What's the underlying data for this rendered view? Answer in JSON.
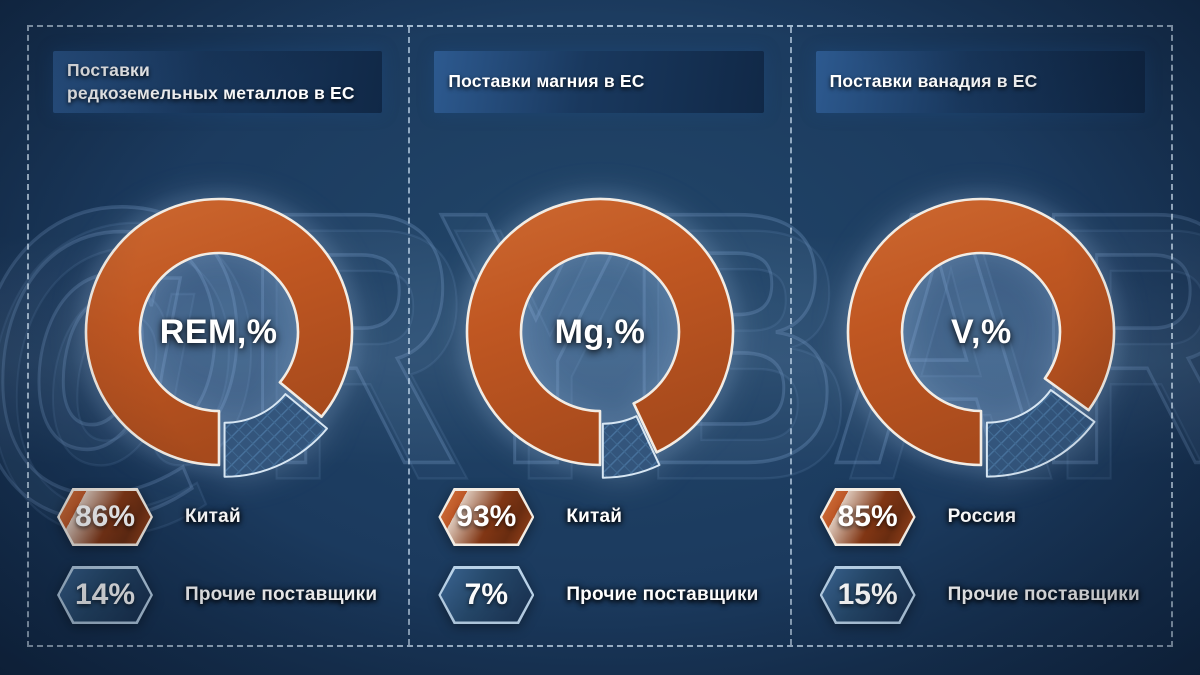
{
  "watermark": "@RYBAR",
  "colors": {
    "background": "#1b3a5e",
    "slice_main_orange": "#c05a24",
    "slice_other_blue": "#33557c",
    "dashed_border": "#d0e4f6",
    "badge_border_orange": "#f3ece3",
    "badge_border_blue": "#b9d2e8",
    "text": "#ffffff"
  },
  "panels": [
    {
      "title_lines": [
        "Поставки",
        "редкоземельных металлов в ЕС"
      ],
      "center_label": "REM,%",
      "slices": [
        {
          "pct_label": "86%",
          "label": "Китай"
        },
        {
          "pct_label": "14%",
          "label": "Прочие поставщики"
        }
      ]
    },
    {
      "title_lines": [
        "Поставки магния в ЕС"
      ],
      "center_label": "Mg,%",
      "slices": [
        {
          "pct_label": "93%",
          "label": "Китай"
        },
        {
          "pct_label": "7%",
          "label": "Прочие поставщики"
        }
      ]
    },
    {
      "title_lines": [
        "Поставки ванадия в ЕС"
      ],
      "center_label": "V,%",
      "slices": [
        {
          "pct_label": "85%",
          "label": "Россия"
        },
        {
          "pct_label": "15%",
          "label": "Прочие поставщики"
        }
      ]
    }
  ],
  "chart_data": [
    {
      "type": "pie",
      "title": "Поставки редкоземельных металлов в ЕС",
      "center_label": "REM,%",
      "labels": [
        "Китай",
        "Прочие поставщики"
      ],
      "values": [
        86,
        14
      ],
      "colors": [
        "#c05a24",
        "#33557c"
      ],
      "donut": true,
      "start_angle_deg": 180,
      "exploded_slice": "Прочие поставщики",
      "legend_position": "bottom"
    },
    {
      "type": "pie",
      "title": "Поставки магния в ЕС",
      "center_label": "Mg,%",
      "labels": [
        "Китай",
        "Прочие поставщики"
      ],
      "values": [
        93,
        7
      ],
      "colors": [
        "#c05a24",
        "#33557c"
      ],
      "donut": true,
      "start_angle_deg": 180,
      "exploded_slice": "Прочие поставщики",
      "legend_position": "bottom"
    },
    {
      "type": "pie",
      "title": "Поставки ванадия в ЕС",
      "center_label": "V,%",
      "labels": [
        "Россия",
        "Прочие поставщики"
      ],
      "values": [
        85,
        15
      ],
      "colors": [
        "#c05a24",
        "#33557c"
      ],
      "donut": true,
      "start_angle_deg": 180,
      "exploded_slice": "Прочие поставщики",
      "legend_position": "bottom"
    }
  ]
}
